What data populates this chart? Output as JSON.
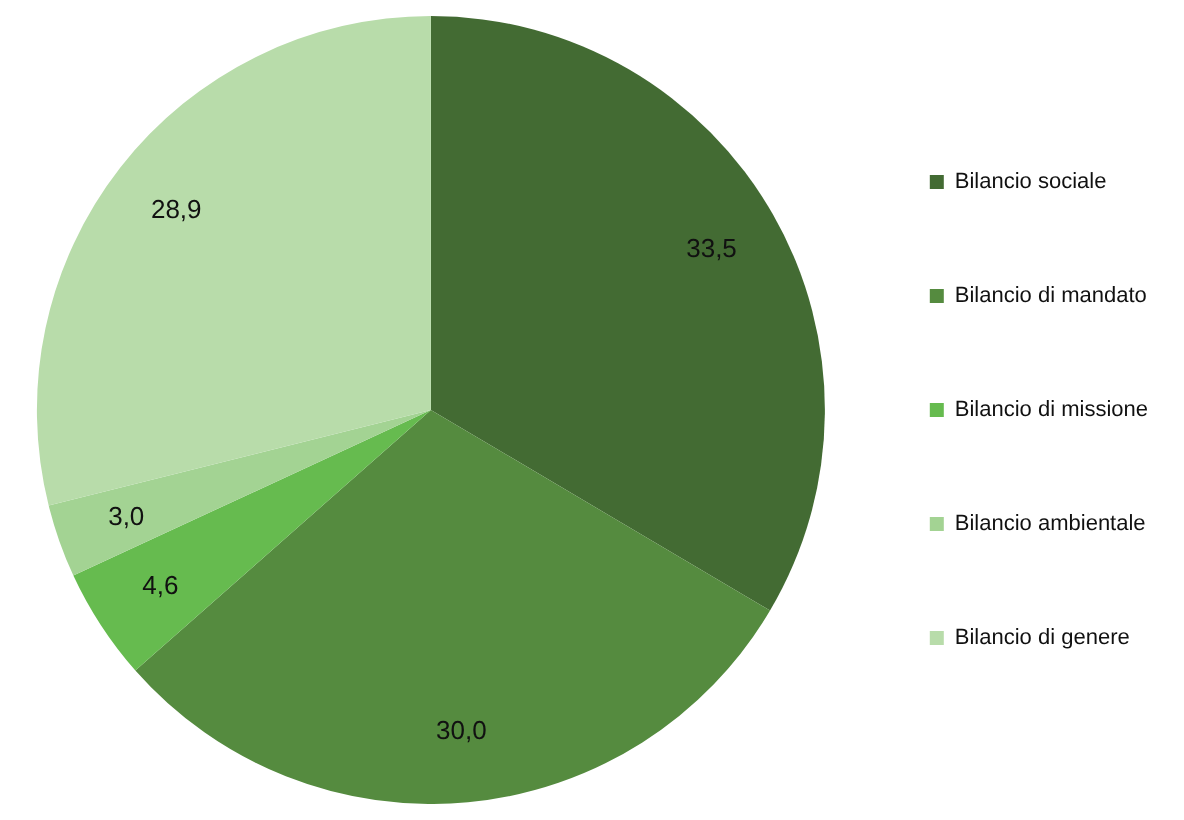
{
  "chart_data": {
    "type": "pie",
    "categories": [
      "Bilancio sociale",
      "Bilancio di mandato",
      "Bilancio di missione",
      "Bilancio ambientale",
      "Bilancio di genere"
    ],
    "values": [
      33.5,
      30.0,
      4.6,
      3.0,
      28.9
    ],
    "value_labels": [
      "33,5",
      "30,0",
      "4,6",
      "3,0",
      "28,9"
    ],
    "colors": [
      "#436b33",
      "#558b3f",
      "#66bb4f",
      "#a3d393",
      "#b8dcaa"
    ],
    "legend": "right"
  }
}
